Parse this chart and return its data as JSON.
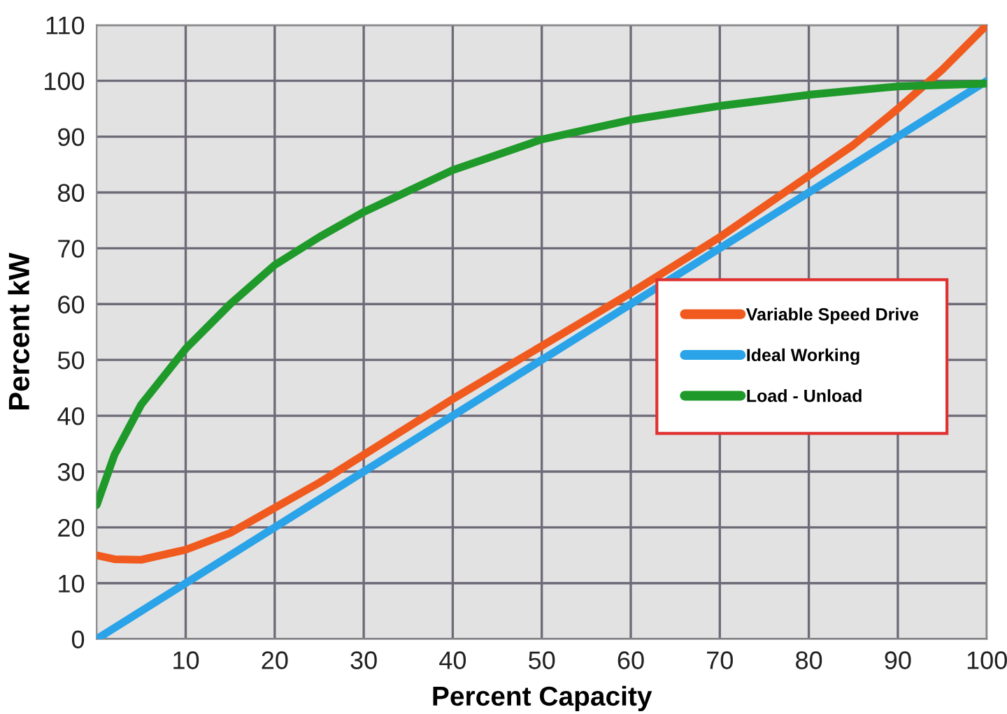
{
  "chart_data": {
    "type": "line",
    "xlabel": "Percent Capacity",
    "ylabel": "Percent kW",
    "xlim": [
      0,
      100
    ],
    "ylim": [
      0,
      110
    ],
    "xticks": [
      10,
      20,
      30,
      40,
      50,
      60,
      70,
      80,
      90,
      100
    ],
    "yticks": [
      0,
      10,
      20,
      30,
      40,
      50,
      60,
      70,
      80,
      90,
      100,
      110
    ],
    "grid": true,
    "legend": "right",
    "marker": "none",
    "line_style": "solid",
    "series": [
      {
        "name": "Variable Speed Drive",
        "color": "#f05a1e",
        "x": [
          0,
          2,
          5,
          10,
          15,
          20,
          25,
          30,
          40,
          50,
          60,
          70,
          80,
          85,
          90,
          95,
          100
        ],
        "values": [
          15,
          14.3,
          14.2,
          16,
          19,
          23.5,
          28,
          33,
          43,
          52.5,
          62,
          72,
          83,
          88.5,
          95,
          102,
          110
        ]
      },
      {
        "name": "Ideal Working",
        "color": "#2aa3e8",
        "x": [
          0,
          100
        ],
        "values": [
          0,
          100
        ]
      },
      {
        "name": "Load - Unload",
        "color": "#1f9a2a",
        "x": [
          0,
          2,
          5,
          10,
          15,
          20,
          25,
          30,
          40,
          50,
          60,
          70,
          80,
          90,
          100
        ],
        "values": [
          24,
          33,
          42,
          52,
          60,
          67,
          72,
          76.5,
          84,
          89.5,
          93,
          95.5,
          97.5,
          99,
          99.5
        ]
      }
    ]
  }
}
